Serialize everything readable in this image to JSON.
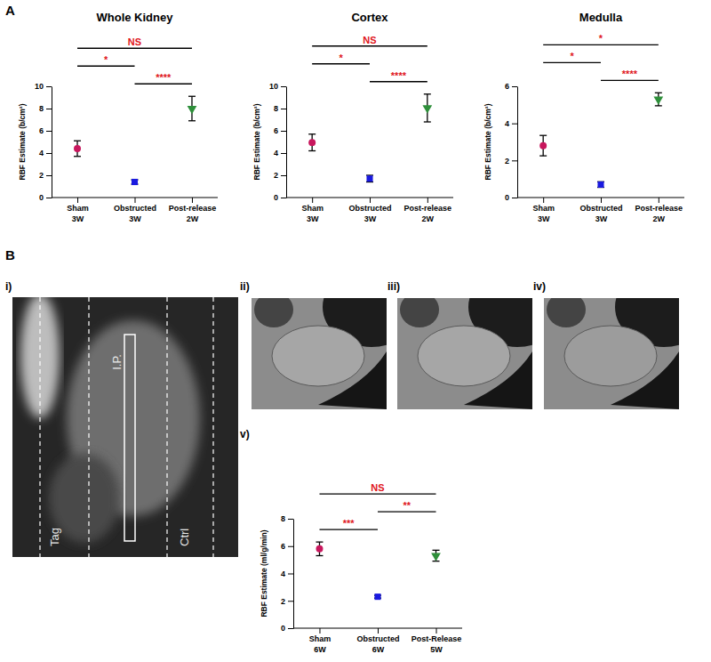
{
  "chart_data": [
    {
      "type": "dot",
      "title": "Whole Kidney",
      "ylabel": "RBF Estimate (b/cm²)",
      "categories": [
        "Sham\n3W",
        "Obstructed\n3W",
        "Post-release\n2W"
      ],
      "values": [
        4.4,
        1.4,
        8.0
      ],
      "errors": [
        0.7,
        0.2,
        1.1
      ],
      "colors": [
        "#c8175d",
        "#1a1ae0",
        "#2e8f3a"
      ],
      "ylim": [
        0,
        10
      ],
      "yticks": [
        0,
        2,
        4,
        6,
        8,
        10
      ],
      "annotations": [
        {
          "text": "NS",
          "from": 0,
          "to": 2
        },
        {
          "text": "****",
          "from": 1,
          "to": 2
        },
        {
          "text": "*",
          "from": 0,
          "to": 1
        }
      ]
    },
    {
      "type": "dot",
      "title": "Cortex",
      "ylabel": "RBF Estimate (b/cm²)",
      "categories": [
        "Sham\n3W",
        "Obstructed\n3W",
        "Post-release\n2W"
      ],
      "values": [
        4.95,
        1.7,
        8.05
      ],
      "errors": [
        0.75,
        0.3,
        1.25
      ],
      "colors": [
        "#c8175d",
        "#1a1ae0",
        "#2e8f3a"
      ],
      "ylim": [
        0,
        10
      ],
      "yticks": [
        0,
        2,
        4,
        6,
        8,
        10
      ],
      "annotations": [
        {
          "text": "NS",
          "from": 0,
          "to": 2
        },
        {
          "text": "****",
          "from": 1,
          "to": 2
        },
        {
          "text": "*",
          "from": 0,
          "to": 1
        }
      ]
    },
    {
      "type": "dot",
      "title": "Medulla",
      "ylabel": "RBF Estimate (b/cm²)",
      "categories": [
        "Sham\n3W",
        "Obstructed\n3W",
        "Post-release\n2W"
      ],
      "values": [
        2.8,
        0.7,
        5.3
      ],
      "errors": [
        0.55,
        0.15,
        0.35
      ],
      "colors": [
        "#c8175d",
        "#1a1ae0",
        "#2e8f3a"
      ],
      "ylim": [
        0,
        6
      ],
      "yticks": [
        0,
        2,
        4,
        6
      ],
      "annotations": [
        {
          "text": "*",
          "from": 0,
          "to": 2
        },
        {
          "text": "****",
          "from": 1,
          "to": 2
        },
        {
          "text": "*",
          "from": 0,
          "to": 1
        }
      ]
    },
    {
      "type": "dot",
      "ylabel": "RBF Estimate (ml/g/min)",
      "categories": [
        "Sham\n6W",
        "Obstructed\n6W",
        "Post-Release\n5W"
      ],
      "values": [
        5.8,
        2.3,
        5.3
      ],
      "errors": [
        0.5,
        0.1,
        0.4
      ],
      "colors": [
        "#c8175d",
        "#1a1ae0",
        "#2e8f3a"
      ],
      "ylim": [
        0,
        8
      ],
      "yticks": [
        0,
        2,
        4,
        6,
        8
      ],
      "annotations": [
        {
          "text": "NS",
          "from": 0,
          "to": 2
        },
        {
          "text": "***",
          "from": 0,
          "to": 1
        },
        {
          "text": "**",
          "from": 1,
          "to": 2
        }
      ]
    }
  ],
  "figure": {
    "panels": [
      "A",
      "B"
    ],
    "subpanels": [
      "i)",
      "ii)",
      "iii)",
      "iv)",
      "v)"
    ],
    "image_labels": [
      "Tag",
      "I.P.",
      "Ctrl"
    ]
  }
}
